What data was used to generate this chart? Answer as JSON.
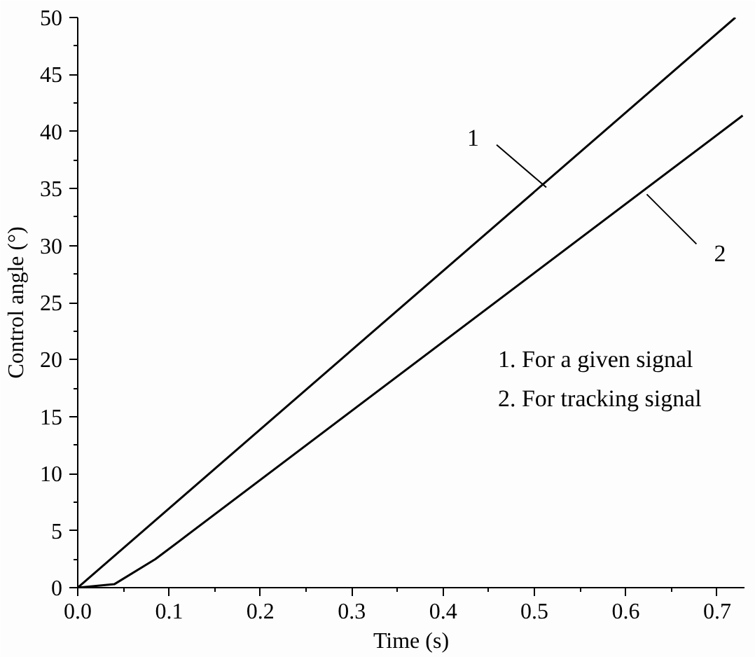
{
  "chart_data": {
    "type": "line",
    "xlabel": "Time (s)",
    "ylabel": "Control angle (°)",
    "xlim": [
      0,
      0.73
    ],
    "ylim": [
      0,
      50
    ],
    "xticks": [
      {
        "value": 0,
        "label": "0.0"
      },
      0.1,
      0.2,
      0.3,
      0.4,
      0.5,
      0.6,
      0.7
    ],
    "yticks": [
      0,
      5,
      10,
      15,
      20,
      25,
      30,
      35,
      40,
      45,
      50
    ],
    "grid": false,
    "marker": "none",
    "line_style": "solid",
    "series": [
      {
        "color": "#000000",
        "x": [
          0,
          0.72
        ],
        "values": [
          0,
          50
        ]
      },
      {
        "color": "#000000",
        "x": [
          0,
          0.04,
          0.085,
          0.728
        ],
        "values": [
          0,
          0.3,
          2.5,
          41.4
        ]
      }
    ],
    "annotations": [
      {
        "text": "1",
        "x": 0.513,
        "y": 35.1
      },
      {
        "text": "2",
        "x": 0.623,
        "y": 34.5
      },
      "1. For a given signal",
      "2. For tracking signal"
    ]
  }
}
